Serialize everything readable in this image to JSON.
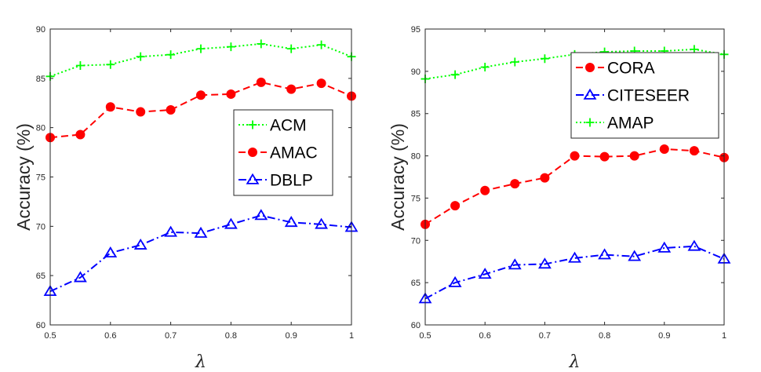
{
  "chart_data": [
    {
      "type": "line",
      "xlabel": "λ",
      "ylabel": "Accuracy (%)",
      "xlim": [
        0.5,
        1
      ],
      "ylim": [
        60,
        90
      ],
      "xticks": [
        "0.5",
        "0.6",
        "0.7",
        "0.8",
        "0.9",
        "1"
      ],
      "yticks": [
        "60",
        "65",
        "70",
        "75",
        "80",
        "85",
        "90"
      ],
      "x": [
        0.5,
        0.55,
        0.6,
        0.65,
        0.7,
        0.75,
        0.8,
        0.85,
        0.9,
        0.95,
        1.0
      ],
      "grid": false,
      "legend_position": "right",
      "series": [
        {
          "name": "ACM",
          "color": "#00ff00",
          "marker": "plus",
          "line": "dotted",
          "values": [
            85.2,
            86.3,
            86.4,
            87.2,
            87.4,
            88.0,
            88.2,
            88.5,
            88.0,
            88.4,
            87.2
          ]
        },
        {
          "name": "AMAC",
          "color": "#ff0000",
          "marker": "circle",
          "line": "dashed",
          "values": [
            79.0,
            79.3,
            82.1,
            81.6,
            81.8,
            83.3,
            83.4,
            84.6,
            83.9,
            84.5,
            83.2
          ]
        },
        {
          "name": "DBLP",
          "color": "#0000ff",
          "marker": "triangle",
          "line": "dashdot",
          "values": [
            63.4,
            64.8,
            67.3,
            68.1,
            69.4,
            69.3,
            70.2,
            71.1,
            70.4,
            70.2,
            69.9
          ]
        }
      ]
    },
    {
      "type": "line",
      "xlabel": "λ",
      "ylabel": "Accuracy (%)",
      "xlim": [
        0.5,
        1
      ],
      "ylim": [
        60,
        95
      ],
      "xticks": [
        "0.5",
        "0.6",
        "0.7",
        "0.8",
        "0.9",
        "1"
      ],
      "yticks": [
        "60",
        "65",
        "70",
        "75",
        "80",
        "85",
        "90",
        "95"
      ],
      "x": [
        0.5,
        0.55,
        0.6,
        0.65,
        0.7,
        0.75,
        0.8,
        0.85,
        0.9,
        0.95,
        1.0
      ],
      "grid": false,
      "legend_position": "top-right",
      "series": [
        {
          "name": "CORA",
          "color": "#ff0000",
          "marker": "circle",
          "line": "dashed",
          "values": [
            71.9,
            74.1,
            75.9,
            76.7,
            77.4,
            80.0,
            79.9,
            80.0,
            80.8,
            80.6,
            79.8
          ]
        },
        {
          "name": "CITESEER",
          "color": "#0000ff",
          "marker": "triangle",
          "line": "dashdot",
          "values": [
            63.1,
            65.0,
            66.0,
            67.1,
            67.2,
            67.9,
            68.3,
            68.1,
            69.1,
            69.3,
            67.8
          ]
        },
        {
          "name": "AMAP",
          "color": "#00ff00",
          "marker": "plus",
          "line": "dotted",
          "values": [
            89.1,
            89.6,
            90.5,
            91.1,
            91.5,
            92.0,
            92.3,
            92.4,
            92.4,
            92.6,
            92.0
          ]
        }
      ]
    }
  ]
}
